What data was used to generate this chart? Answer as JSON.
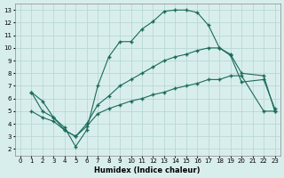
{
  "xlabel": "Humidex (Indice chaleur)",
  "bg_color": "#d8eeed",
  "grid_color": "#b8d8d4",
  "line_color": "#1a6b5a",
  "xlim": [
    -0.5,
    23.5
  ],
  "ylim": [
    1.5,
    13.5
  ],
  "xticks": [
    0,
    1,
    2,
    3,
    4,
    5,
    6,
    7,
    8,
    9,
    10,
    11,
    12,
    13,
    14,
    15,
    16,
    17,
    18,
    19,
    20,
    21,
    22,
    23
  ],
  "yticks": [
    2,
    3,
    4,
    5,
    6,
    7,
    8,
    9,
    10,
    11,
    12,
    13
  ],
  "line1_x": [
    1,
    2,
    3,
    4,
    5,
    6,
    7,
    8,
    9,
    10,
    11,
    12,
    13,
    14,
    15,
    16,
    17,
    18,
    19,
    20,
    22,
    23
  ],
  "line1_y": [
    6.5,
    5.8,
    4.5,
    3.7,
    2.2,
    3.5,
    7.0,
    9.3,
    10.5,
    10.5,
    11.5,
    12.1,
    12.9,
    13.0,
    13.0,
    12.8,
    11.8,
    10.0,
    9.4,
    7.3,
    7.5,
    5.2
  ],
  "line2_x": [
    1,
    2,
    3,
    4,
    5,
    6,
    7,
    8,
    9,
    10,
    11,
    12,
    13,
    14,
    15,
    16,
    17,
    18,
    19,
    20,
    22,
    23
  ],
  "line2_y": [
    6.5,
    5.0,
    4.5,
    3.5,
    3.0,
    4.0,
    5.5,
    6.2,
    7.0,
    7.5,
    8.0,
    8.5,
    9.0,
    9.3,
    9.5,
    9.8,
    10.0,
    10.0,
    9.5,
    8.0,
    7.8,
    5.0
  ],
  "line3_x": [
    1,
    2,
    3,
    4,
    5,
    6,
    7,
    8,
    9,
    10,
    11,
    12,
    13,
    14,
    15,
    16,
    17,
    18,
    19,
    20,
    22,
    23
  ],
  "line3_y": [
    5.0,
    4.5,
    4.2,
    3.5,
    3.0,
    3.8,
    4.8,
    5.2,
    5.5,
    5.8,
    6.0,
    6.3,
    6.5,
    6.8,
    7.0,
    7.2,
    7.5,
    7.5,
    7.8,
    7.8,
    5.0,
    5.0
  ]
}
